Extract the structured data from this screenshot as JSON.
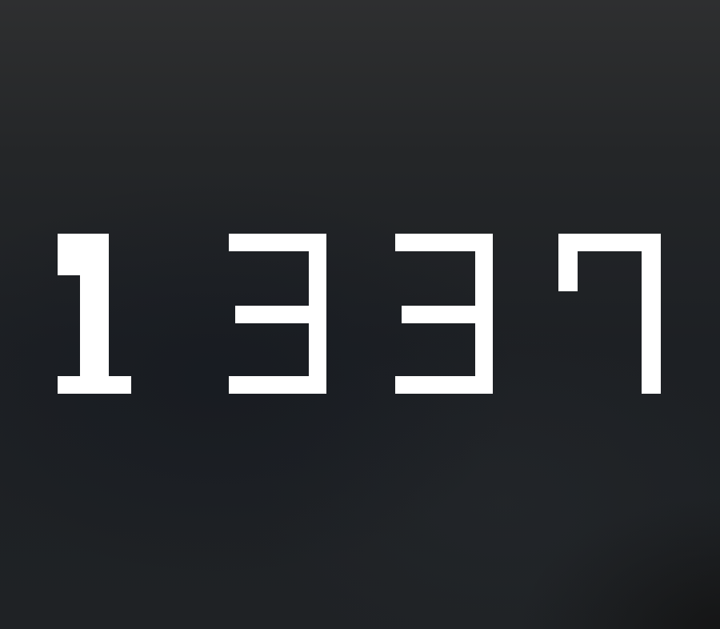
{
  "display": {
    "value": "1337",
    "color": "#ffffff",
    "background": "#1e2125"
  }
}
